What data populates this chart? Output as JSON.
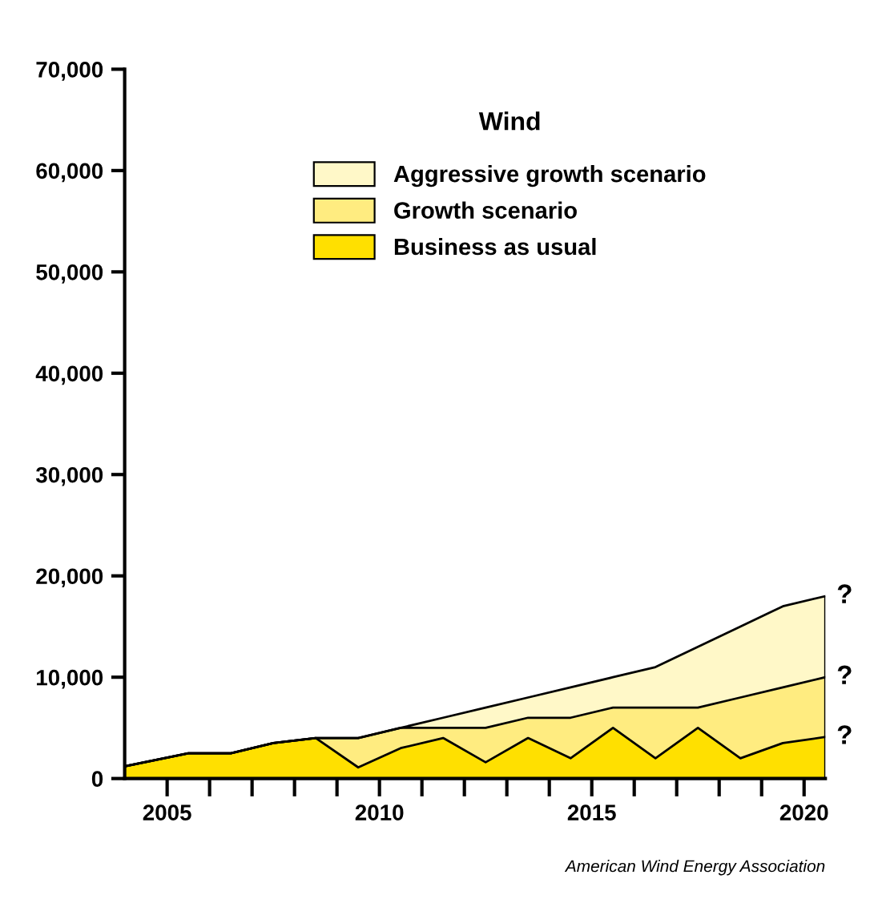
{
  "chart_data": {
    "type": "area",
    "stacked": true,
    "legend_title": "Wind",
    "x": [
      2004,
      2005.5,
      2006.5,
      2007.5,
      2008.5,
      2009.5,
      2010.5,
      2011.5,
      2012.5,
      2013.5,
      2014.5,
      2015.5,
      2016.5,
      2017.5,
      2018.5,
      2019.5,
      2020.5
    ],
    "series": [
      {
        "name": "Business as usual",
        "color": "#ffe000",
        "values": [
          1200,
          2500,
          2500,
          3500,
          4000,
          1100,
          3000,
          4000,
          1600,
          4000,
          2000,
          5000,
          2000,
          5000,
          2000,
          3500,
          4100
        ]
      },
      {
        "name": "Growth scenario",
        "color": "#ffec80",
        "values": [
          0,
          0,
          0,
          0,
          0,
          2900,
          2000,
          1000,
          3400,
          2000,
          4000,
          2000,
          5000,
          2000,
          6000,
          5500,
          5900
        ]
      },
      {
        "name": "Aggressive growth scenario",
        "color": "#fff8c8",
        "values": [
          0,
          0,
          0,
          0,
          0,
          0,
          0,
          1000,
          2000,
          2000,
          3000,
          3000,
          4000,
          6000,
          7000,
          8000,
          8000
        ]
      }
    ],
    "xlim": [
      2004,
      2020.5
    ],
    "ylim": [
      0,
      70000
    ],
    "xticks": [
      {
        "value": 2005,
        "label": "2005"
      },
      {
        "value": 2006,
        "label": null
      },
      {
        "value": 2007,
        "label": null
      },
      {
        "value": 2008,
        "label": null
      },
      {
        "value": 2009,
        "label": null
      },
      {
        "value": 2010,
        "label": "2010"
      },
      {
        "value": 2011,
        "label": null
      },
      {
        "value": 2012,
        "label": null
      },
      {
        "value": 2013,
        "label": null
      },
      {
        "value": 2014,
        "label": null
      },
      {
        "value": 2015,
        "label": "2015"
      },
      {
        "value": 2016,
        "label": null
      },
      {
        "value": 2017,
        "label": null
      },
      {
        "value": 2018,
        "label": null
      },
      {
        "value": 2019,
        "label": null
      },
      {
        "value": 2020,
        "label": "2020"
      }
    ],
    "yticks": [
      {
        "value": 0,
        "label": "0"
      },
      {
        "value": 10000,
        "label": "10,000"
      },
      {
        "value": 20000,
        "label": "20,000"
      },
      {
        "value": 30000,
        "label": "30,000"
      },
      {
        "value": 40000,
        "label": "40,000"
      },
      {
        "value": 50000,
        "label": "50,000"
      },
      {
        "value": 60000,
        "label": "60,000"
      },
      {
        "value": 70000,
        "label": "70,000"
      }
    ],
    "annotations": [
      "?",
      "?",
      "?",
      "American Wind Energy Association"
    ],
    "legend": "top",
    "grid": false
  }
}
